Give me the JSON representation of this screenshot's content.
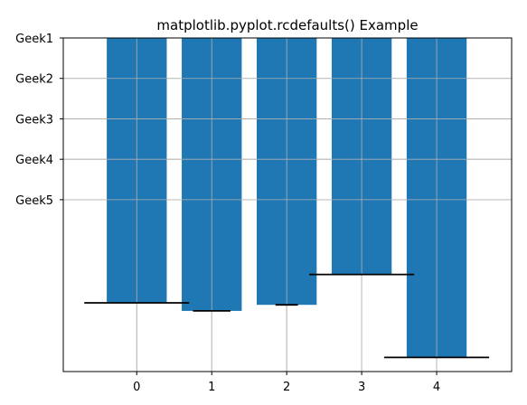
{
  "chart_data": {
    "type": "bar",
    "title": "matplotlib.pyplot.rcdefaults() Example",
    "xlabel": "",
    "ylabel": "",
    "x": [
      0,
      1,
      2,
      3,
      4
    ],
    "x_tick_labels": [
      "0",
      "1",
      "2",
      "3",
      "4"
    ],
    "y_tick_labels": [
      "Geek1",
      "Geek2",
      "Geek3",
      "Geek4",
      "Geek5"
    ],
    "y_tick_values": [
      0,
      1,
      2,
      3,
      4
    ],
    "y_axis_inverted": true,
    "xlim": [
      -0.98,
      5.0
    ],
    "ylim": [
      8.25,
      0
    ],
    "grid": true,
    "bar_width": 0.8,
    "values": [
      6.55,
      6.75,
      6.6,
      5.85,
      7.9
    ],
    "errorbars": {
      "style": "horizontal",
      "center_x": [
        0,
        1,
        2,
        3,
        4
      ],
      "y": [
        6.55,
        6.75,
        6.6,
        5.85,
        7.9
      ],
      "half_width": [
        0.7,
        0.25,
        0.15,
        0.7,
        0.7
      ]
    },
    "colors": {
      "bar": "#1f77b4",
      "grid": "#b0b0b0",
      "axis": "#000000",
      "errorbar": "#000000"
    }
  }
}
